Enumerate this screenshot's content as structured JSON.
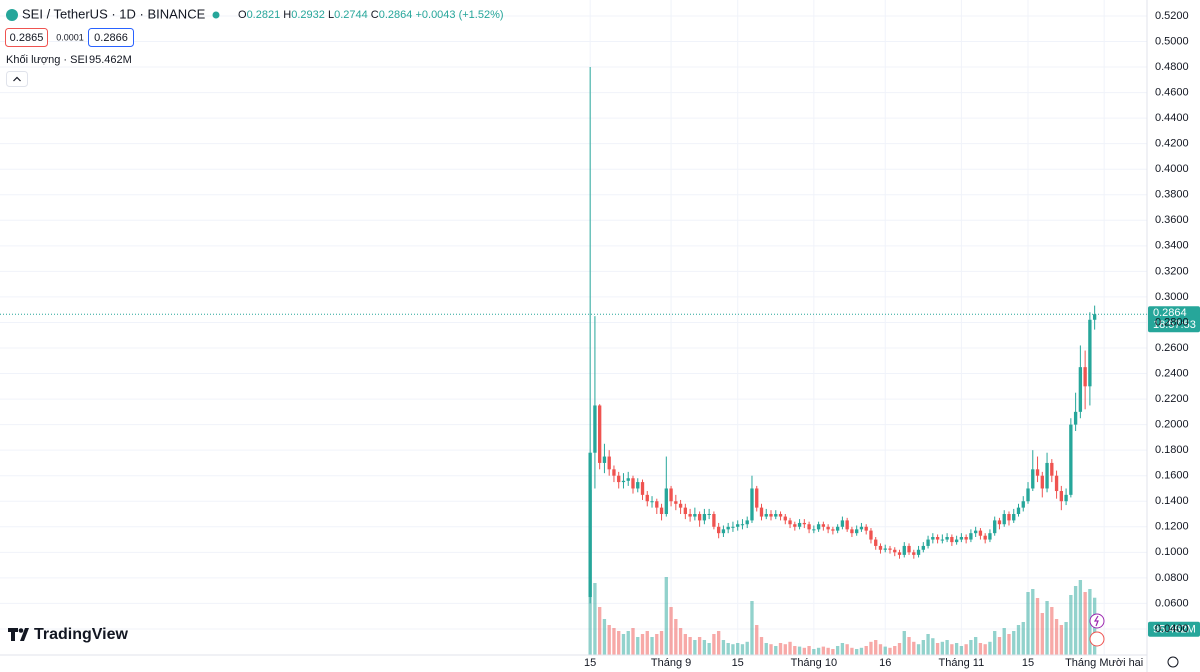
{
  "chart_data": {
    "type": "candlestick",
    "header": {
      "symbol": "SEI / TetherUS · 1D · BINANCE",
      "ohlc_labels": [
        "O",
        "H",
        "L",
        "C"
      ],
      "change": "+0.0043 (+1.52%)",
      "bid": "0.2865",
      "spread": "0.0001",
      "ask": "0.2866",
      "volume_title": "Khối lượng · SEI",
      "volume_label": "95.462M",
      "countdown": "18:57:53",
      "watermark": "TradingView"
    },
    "up_color": "#26a69a",
    "down_color": "#ef5350",
    "grid": true,
    "xlim": [
      -124,
      117
    ],
    "xticks": [
      {
        "value": 0,
        "label": "15"
      },
      {
        "value": 17,
        "label": "Tháng 9"
      },
      {
        "value": 31,
        "label": "15"
      },
      {
        "value": 47,
        "label": "Tháng 10"
      },
      {
        "value": 62,
        "label": "16"
      },
      {
        "value": 78,
        "label": "Tháng 11"
      },
      {
        "value": 92,
        "label": "15"
      },
      {
        "value": 108,
        "label": "Tháng Mười hai"
      }
    ],
    "ylim": [
      0.0196,
      0.5325
    ],
    "yticks": [
      {
        "value": 0.04,
        "label": "0.0400"
      },
      {
        "value": 0.06,
        "label": "0.0600"
      },
      {
        "value": 0.08,
        "label": "0.0800"
      },
      {
        "value": 0.1,
        "label": "0.1000"
      },
      {
        "value": 0.12,
        "label": "0.1200"
      },
      {
        "value": 0.14,
        "label": "0.1400"
      },
      {
        "value": 0.16,
        "label": "0.1600"
      },
      {
        "value": 0.18,
        "label": "0.1800"
      },
      {
        "value": 0.2,
        "label": "0.2000"
      },
      {
        "value": 0.22,
        "label": "0.2200"
      },
      {
        "value": 0.24,
        "label": "0.2400"
      },
      {
        "value": 0.26,
        "label": "0.2600"
      },
      {
        "value": 0.28,
        "label": "0.2800"
      },
      {
        "value": 0.3,
        "label": "0.3000"
      },
      {
        "value": 0.32,
        "label": "0.3200"
      },
      {
        "value": 0.34,
        "label": "0.3400"
      },
      {
        "value": 0.36,
        "label": "0.3600"
      },
      {
        "value": 0.38,
        "label": "0.3800"
      },
      {
        "value": 0.4,
        "label": "0.4000"
      },
      {
        "value": 0.42,
        "label": "0.4200"
      },
      {
        "value": 0.44,
        "label": "0.4400"
      },
      {
        "value": 0.46,
        "label": "0.4600"
      },
      {
        "value": 0.48,
        "label": "0.4800"
      },
      {
        "value": 0.5,
        "label": "0.5000"
      },
      {
        "value": 0.52,
        "label": "0.5200"
      }
    ],
    "volume_lim": [
      0,
      400
    ],
    "ohlc": [
      [
        0.065,
        0.48,
        0.06,
        0.178
      ],
      [
        0.178,
        0.285,
        0.15,
        0.215
      ],
      [
        0.215,
        0.216,
        0.165,
        0.17
      ],
      [
        0.17,
        0.185,
        0.162,
        0.175
      ],
      [
        0.175,
        0.18,
        0.16,
        0.165
      ],
      [
        0.165,
        0.168,
        0.155,
        0.16
      ],
      [
        0.16,
        0.163,
        0.15,
        0.155
      ],
      [
        0.155,
        0.162,
        0.15,
        0.156
      ],
      [
        0.156,
        0.163,
        0.152,
        0.158
      ],
      [
        0.158,
        0.16,
        0.146,
        0.15
      ],
      [
        0.15,
        0.158,
        0.147,
        0.155
      ],
      [
        0.155,
        0.157,
        0.141,
        0.145
      ],
      [
        0.145,
        0.148,
        0.136,
        0.14
      ],
      [
        0.14,
        0.144,
        0.135,
        0.14
      ],
      [
        0.14,
        0.142,
        0.13,
        0.135
      ],
      [
        0.135,
        0.138,
        0.125,
        0.13
      ],
      [
        0.13,
        0.175,
        0.128,
        0.15
      ],
      [
        0.15,
        0.152,
        0.136,
        0.14
      ],
      [
        0.14,
        0.145,
        0.133,
        0.138
      ],
      [
        0.138,
        0.141,
        0.13,
        0.135
      ],
      [
        0.135,
        0.138,
        0.126,
        0.13
      ],
      [
        0.13,
        0.134,
        0.124,
        0.128
      ],
      [
        0.128,
        0.135,
        0.125,
        0.13
      ],
      [
        0.13,
        0.132,
        0.12,
        0.125
      ],
      [
        0.125,
        0.134,
        0.122,
        0.13
      ],
      [
        0.13,
        0.134,
        0.126,
        0.13
      ],
      [
        0.13,
        0.132,
        0.118,
        0.12
      ],
      [
        0.12,
        0.123,
        0.111,
        0.115
      ],
      [
        0.115,
        0.121,
        0.112,
        0.118
      ],
      [
        0.118,
        0.123,
        0.115,
        0.12
      ],
      [
        0.12,
        0.124,
        0.116,
        0.12
      ],
      [
        0.12,
        0.125,
        0.117,
        0.122
      ],
      [
        0.122,
        0.126,
        0.118,
        0.122
      ],
      [
        0.122,
        0.128,
        0.119,
        0.125
      ],
      [
        0.125,
        0.16,
        0.123,
        0.15
      ],
      [
        0.15,
        0.152,
        0.132,
        0.135
      ],
      [
        0.135,
        0.138,
        0.125,
        0.128
      ],
      [
        0.128,
        0.134,
        0.126,
        0.13
      ],
      [
        0.13,
        0.133,
        0.125,
        0.128
      ],
      [
        0.128,
        0.133,
        0.126,
        0.13
      ],
      [
        0.13,
        0.132,
        0.125,
        0.128
      ],
      [
        0.128,
        0.13,
        0.122,
        0.125
      ],
      [
        0.125,
        0.127,
        0.119,
        0.122
      ],
      [
        0.122,
        0.124,
        0.117,
        0.12
      ],
      [
        0.12,
        0.126,
        0.118,
        0.123
      ],
      [
        0.123,
        0.126,
        0.119,
        0.122
      ],
      [
        0.122,
        0.124,
        0.115,
        0.118
      ],
      [
        0.118,
        0.121,
        0.115,
        0.118
      ],
      [
        0.118,
        0.124,
        0.116,
        0.122
      ],
      [
        0.122,
        0.124,
        0.117,
        0.12
      ],
      [
        0.12,
        0.122,
        0.115,
        0.118
      ],
      [
        0.118,
        0.12,
        0.114,
        0.117
      ],
      [
        0.117,
        0.122,
        0.115,
        0.12
      ],
      [
        0.12,
        0.128,
        0.118,
        0.125
      ],
      [
        0.125,
        0.127,
        0.116,
        0.118
      ],
      [
        0.118,
        0.12,
        0.112,
        0.115
      ],
      [
        0.115,
        0.121,
        0.113,
        0.118
      ],
      [
        0.118,
        0.123,
        0.116,
        0.12
      ],
      [
        0.12,
        0.122,
        0.114,
        0.117
      ],
      [
        0.117,
        0.119,
        0.107,
        0.11
      ],
      [
        0.11,
        0.112,
        0.102,
        0.105
      ],
      [
        0.105,
        0.107,
        0.099,
        0.102
      ],
      [
        0.102,
        0.106,
        0.1,
        0.103
      ],
      [
        0.103,
        0.105,
        0.099,
        0.102
      ],
      [
        0.102,
        0.104,
        0.097,
        0.1
      ],
      [
        0.1,
        0.102,
        0.095,
        0.098
      ],
      [
        0.098,
        0.108,
        0.096,
        0.105
      ],
      [
        0.105,
        0.107,
        0.098,
        0.1
      ],
      [
        0.1,
        0.102,
        0.095,
        0.098
      ],
      [
        0.098,
        0.105,
        0.096,
        0.102
      ],
      [
        0.102,
        0.108,
        0.1,
        0.105
      ],
      [
        0.105,
        0.113,
        0.103,
        0.11
      ],
      [
        0.11,
        0.115,
        0.107,
        0.112
      ],
      [
        0.112,
        0.114,
        0.107,
        0.11
      ],
      [
        0.11,
        0.114,
        0.107,
        0.11
      ],
      [
        0.11,
        0.115,
        0.108,
        0.112
      ],
      [
        0.112,
        0.114,
        0.105,
        0.108
      ],
      [
        0.108,
        0.113,
        0.106,
        0.11
      ],
      [
        0.11,
        0.115,
        0.108,
        0.112
      ],
      [
        0.112,
        0.114,
        0.107,
        0.11
      ],
      [
        0.11,
        0.118,
        0.108,
        0.115
      ],
      [
        0.115,
        0.12,
        0.112,
        0.117
      ],
      [
        0.117,
        0.119,
        0.11,
        0.113
      ],
      [
        0.113,
        0.115,
        0.107,
        0.11
      ],
      [
        0.11,
        0.118,
        0.108,
        0.115
      ],
      [
        0.115,
        0.128,
        0.113,
        0.125
      ],
      [
        0.125,
        0.127,
        0.118,
        0.122
      ],
      [
        0.122,
        0.133,
        0.12,
        0.13
      ],
      [
        0.13,
        0.132,
        0.121,
        0.125
      ],
      [
        0.125,
        0.134,
        0.123,
        0.13
      ],
      [
        0.13,
        0.138,
        0.128,
        0.135
      ],
      [
        0.135,
        0.144,
        0.132,
        0.14
      ],
      [
        0.14,
        0.155,
        0.138,
        0.15
      ],
      [
        0.15,
        0.18,
        0.148,
        0.165
      ],
      [
        0.165,
        0.175,
        0.155,
        0.16
      ],
      [
        0.16,
        0.163,
        0.143,
        0.15
      ],
      [
        0.15,
        0.178,
        0.147,
        0.17
      ],
      [
        0.17,
        0.173,
        0.155,
        0.16
      ],
      [
        0.16,
        0.164,
        0.142,
        0.148
      ],
      [
        0.148,
        0.152,
        0.133,
        0.14
      ],
      [
        0.14,
        0.15,
        0.137,
        0.145
      ],
      [
        0.145,
        0.205,
        0.143,
        0.2
      ],
      [
        0.2,
        0.225,
        0.195,
        0.21
      ],
      [
        0.21,
        0.262,
        0.205,
        0.245
      ],
      [
        0.245,
        0.258,
        0.212,
        0.23
      ],
      [
        0.23,
        0.288,
        0.215,
        0.2821
      ],
      [
        0.2821,
        0.2932,
        0.2744,
        0.2864
      ]
    ],
    "volume": [
      275,
      120,
      80,
      60,
      50,
      45,
      40,
      35,
      40,
      45,
      30,
      35,
      40,
      30,
      35,
      40,
      130,
      80,
      60,
      45,
      35,
      30,
      25,
      30,
      25,
      20,
      35,
      40,
      25,
      20,
      18,
      20,
      18,
      22,
      90,
      50,
      30,
      20,
      18,
      15,
      20,
      18,
      22,
      15,
      14,
      12,
      15,
      10,
      12,
      14,
      12,
      10,
      15,
      20,
      18,
      12,
      10,
      12,
      15,
      22,
      25,
      18,
      14,
      12,
      15,
      20,
      40,
      30,
      22,
      18,
      25,
      35,
      28,
      20,
      22,
      25,
      18,
      20,
      15,
      18,
      25,
      30,
      20,
      18,
      22,
      40,
      30,
      45,
      35,
      40,
      50,
      55,
      105,
      110,
      95,
      70,
      90,
      80,
      60,
      50,
      55,
      100,
      115,
      125,
      105,
      110,
      95.462
    ]
  }
}
